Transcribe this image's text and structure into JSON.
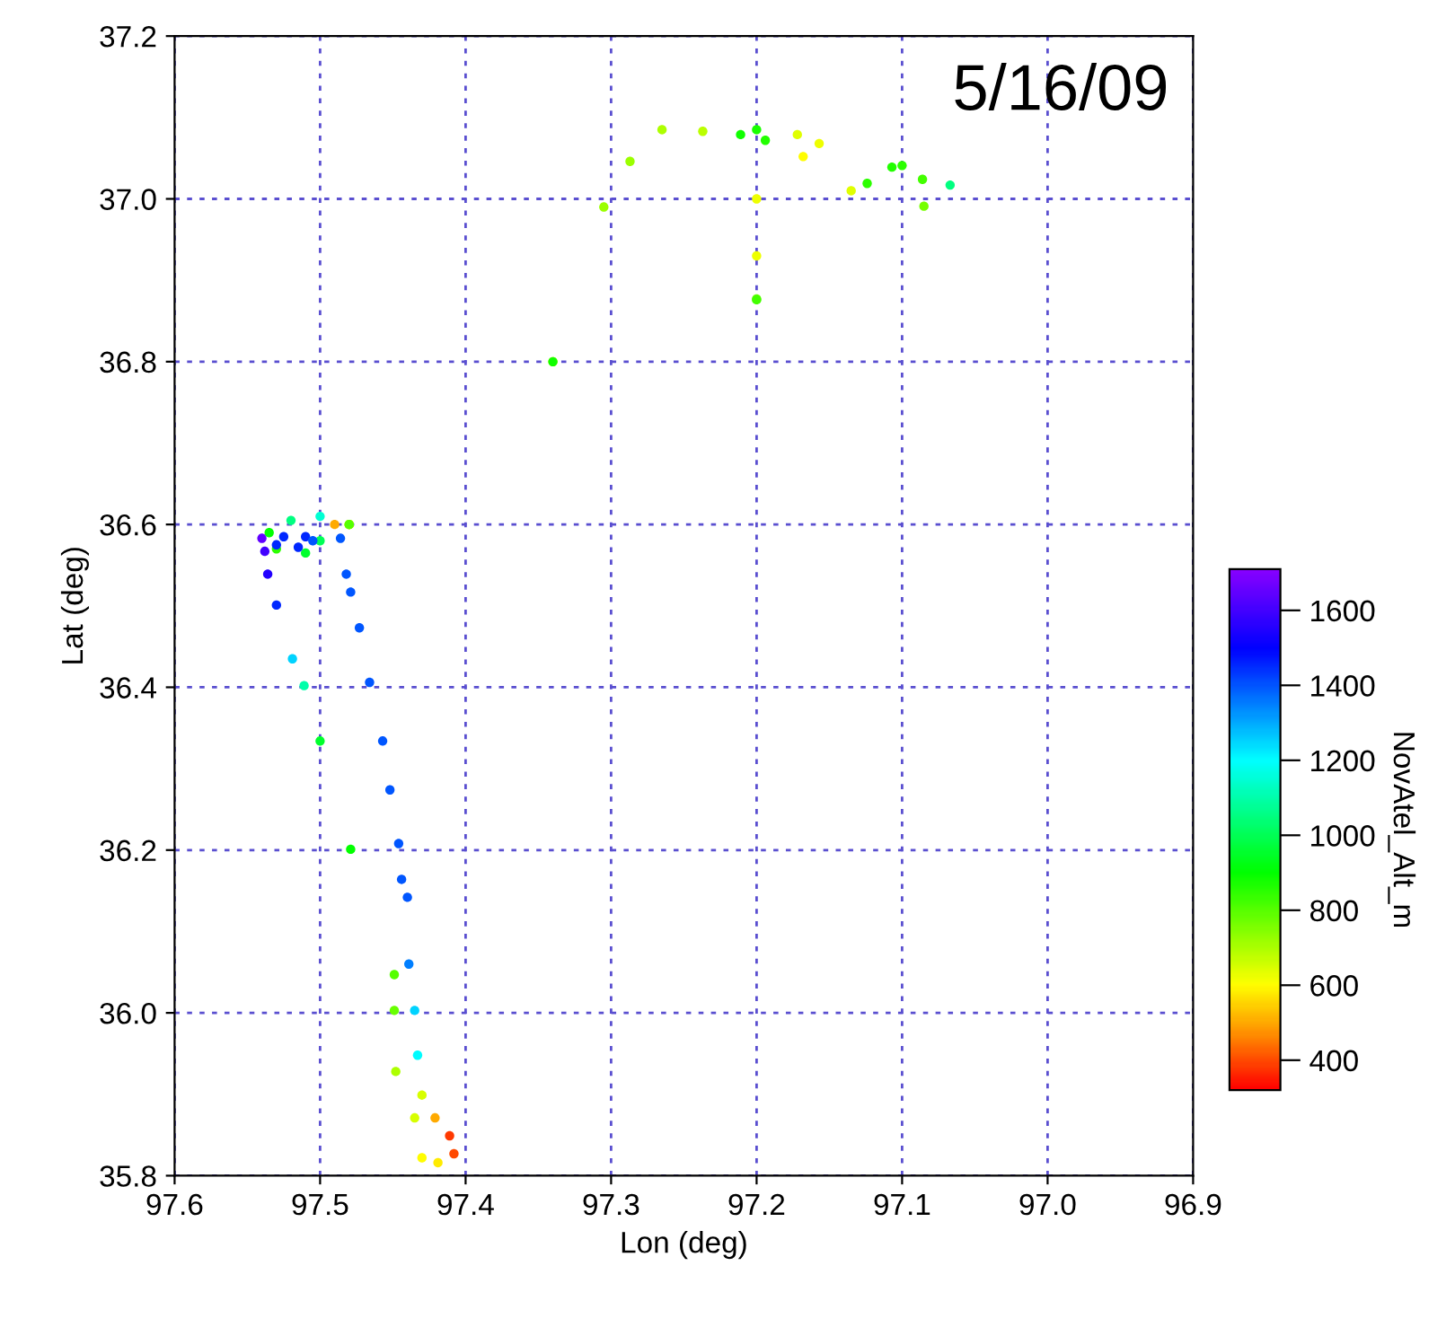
{
  "chart_data": {
    "type": "scatter",
    "xlabel": "Lon (deg)",
    "ylabel": "Lat (deg)",
    "clabel": "NovAtel_Alt_m",
    "annotations": [
      "5/16/09"
    ],
    "xlim": [
      97.6,
      96.9
    ],
    "xticks": [
      97.6,
      97.5,
      97.4,
      97.3,
      97.2,
      97.1,
      {
        "value": 97.0,
        "label": "97.0"
      },
      96.9
    ],
    "ylim": [
      35.8,
      37.2
    ],
    "yticks": [
      35.8,
      {
        "value": 36.0,
        "label": "36.0"
      },
      36.2,
      36.4,
      36.6,
      36.8,
      {
        "value": 37.0,
        "label": "37.0"
      },
      37.2
    ],
    "clim": [
      320,
      1710
    ],
    "cticks": [
      400,
      600,
      800,
      1000,
      1200,
      1400,
      1600
    ],
    "grid": true,
    "x": [
      97.48,
      97.305,
      97.287,
      97.265,
      97.237,
      97.172,
      97.157,
      97.168,
      97.2,
      97.34,
      97.48,
      97.34,
      97.211,
      97.2,
      97.194,
      97.124,
      97.107,
      97.1,
      97.086,
      97.085,
      97.2,
      97.48,
      97.2,
      97.135,
      97.067,
      97.2,
      97.48,
      97.5,
      97.52,
      97.535,
      97.53,
      97.51,
      97.5,
      97.51,
      97.525,
      97.53,
      97.515,
      97.505,
      97.49,
      97.54,
      97.538,
      97.536,
      97.53,
      97.519,
      97.511,
      97.5,
      97.479,
      97.449,
      97.449,
      97.448,
      97.435,
      97.43,
      97.419,
      97.408,
      97.411,
      97.421,
      97.43,
      97.433,
      97.435,
      97.439,
      97.44,
      97.444,
      97.446,
      97.452,
      97.457,
      97.466,
      97.473,
      97.479,
      97.482,
      97.486
    ],
    "values": [
      36.6,
      36.99,
      37.046,
      37.085,
      37.083,
      37.079,
      37.068,
      37.052,
      37.0,
      36.8,
      36.6,
      36.8,
      37.079,
      37.085,
      37.072,
      37.019,
      37.039,
      37.041,
      37.024,
      36.991,
      36.877,
      36.6,
      36.93,
      37.01,
      37.017,
      36.876,
      36.6,
      36.61,
      36.605,
      36.59,
      36.57,
      36.565,
      36.58,
      36.585,
      36.585,
      36.575,
      36.572,
      36.58,
      36.6,
      36.583,
      36.567,
      36.539,
      36.501,
      36.435,
      36.402,
      36.334,
      36.201,
      36.047,
      36.003,
      35.928,
      35.871,
      35.822,
      35.816,
      35.827,
      35.849,
      35.871,
      35.899,
      35.948,
      36.003,
      36.06,
      36.142,
      36.164,
      36.208,
      36.274,
      36.334,
      36.406,
      36.473,
      36.517,
      36.539,
      36.583
    ],
    "cvalues": [
      650,
      720,
      720,
      700,
      680,
      640,
      620,
      600,
      620,
      620,
      650,
      880,
      880,
      870,
      860,
      850,
      860,
      850,
      820,
      760,
      780,
      700,
      620,
      640,
      1050,
      820,
      800,
      1150,
      1050,
      900,
      850,
      950,
      1000,
      1450,
      1450,
      1450,
      1450,
      1400,
      500,
      1650,
      1600,
      1550,
      1450,
      1250,
      1100,
      950,
      900,
      800,
      780,
      700,
      650,
      600,
      580,
      400,
      380,
      500,
      650,
      1200,
      1250,
      1350,
      1400,
      1400,
      1400,
      1400,
      1400,
      1400,
      1400,
      1400,
      1400,
      1400
    ]
  }
}
